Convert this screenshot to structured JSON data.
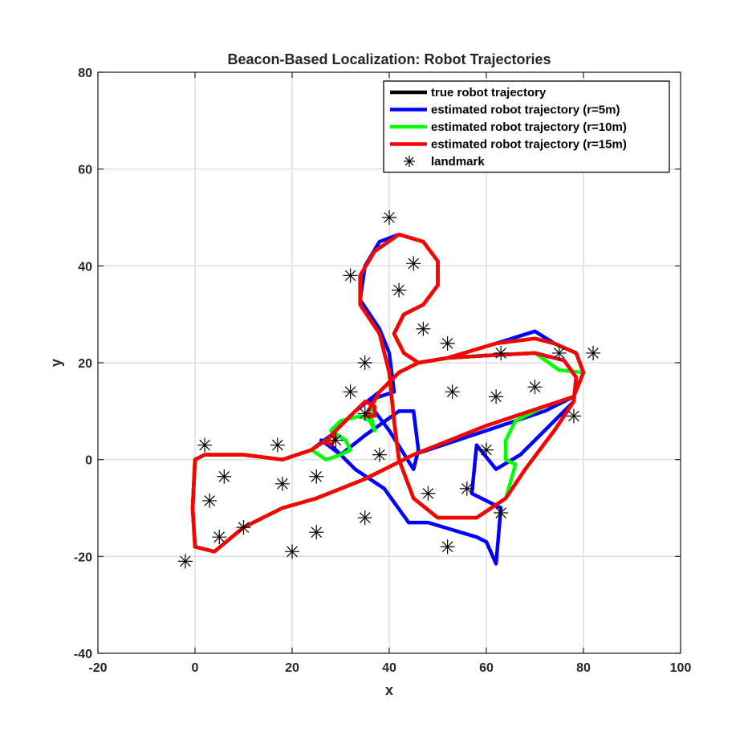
{
  "chart_data": {
    "type": "line",
    "title": "Beacon-Based Localization: Robot Trajectories",
    "xlabel": "x",
    "ylabel": "y",
    "xlim": [
      -20,
      100
    ],
    "ylim": [
      -40,
      80
    ],
    "xticks": [
      -20,
      0,
      20,
      40,
      60,
      80,
      100
    ],
    "yticks": [
      -40,
      -20,
      0,
      20,
      40,
      60,
      80
    ],
    "grid": true,
    "legend_position": "top-right",
    "series": [
      {
        "name": "true robot trajectory",
        "color": "#000000",
        "points": [
          [
            0,
            0
          ],
          [
            2,
            1
          ],
          [
            10,
            1
          ],
          [
            18,
            0
          ],
          [
            24,
            2
          ],
          [
            28,
            5
          ],
          [
            33,
            10
          ],
          [
            38,
            14
          ],
          [
            42,
            18
          ],
          [
            46,
            20
          ],
          [
            52,
            21
          ],
          [
            60,
            21.5
          ],
          [
            70,
            22
          ],
          [
            76,
            20.5
          ],
          [
            78.5,
            17
          ],
          [
            78,
            12
          ],
          [
            74,
            6
          ],
          [
            68,
            -2
          ],
          [
            64,
            -8
          ],
          [
            58,
            -12
          ],
          [
            50,
            -12
          ],
          [
            45,
            -8
          ],
          [
            42,
            0
          ],
          [
            41,
            8
          ],
          [
            40,
            18
          ],
          [
            38,
            26
          ],
          [
            34,
            32
          ],
          [
            34,
            38
          ],
          [
            37,
            43
          ],
          [
            42,
            46.5
          ],
          [
            47,
            45
          ],
          [
            50,
            41
          ],
          [
            50,
            36
          ],
          [
            47,
            32
          ],
          [
            43,
            30
          ],
          [
            41,
            26
          ],
          [
            43,
            22
          ],
          [
            46,
            20
          ],
          [
            52,
            21
          ],
          [
            62,
            24
          ],
          [
            70,
            25
          ],
          [
            74,
            24
          ],
          [
            78.5,
            22
          ],
          [
            80,
            18
          ],
          [
            78,
            13
          ],
          [
            72,
            11
          ],
          [
            60,
            7
          ],
          [
            45,
            1
          ],
          [
            35,
            -4
          ],
          [
            25,
            -8
          ],
          [
            18,
            -10
          ],
          [
            10,
            -14
          ],
          [
            4,
            -19
          ],
          [
            0,
            -18
          ],
          [
            -0.5,
            -10
          ],
          [
            0,
            0
          ]
        ]
      },
      {
        "name": "estimated robot trajectory (r=5m)",
        "color": "#0000ff",
        "points": [
          [
            0,
            0
          ],
          [
            2,
            1
          ],
          [
            10,
            1
          ],
          [
            18,
            0
          ],
          [
            24,
            2
          ],
          [
            28,
            5
          ],
          [
            33,
            10
          ],
          [
            38,
            14
          ],
          [
            42,
            18
          ],
          [
            46,
            20
          ],
          [
            52,
            21
          ],
          [
            60,
            21.5
          ],
          [
            70,
            22
          ],
          [
            76,
            20.5
          ],
          [
            78.5,
            17
          ],
          [
            78,
            12
          ],
          [
            72,
            6
          ],
          [
            67,
            1
          ],
          [
            62,
            -2
          ],
          [
            58,
            3
          ],
          [
            57,
            -7
          ],
          [
            62,
            -9.5
          ],
          [
            63,
            -10
          ],
          [
            62,
            -21.5
          ],
          [
            60,
            -17
          ],
          [
            58,
            -16
          ],
          [
            48,
            -13
          ],
          [
            44,
            -13
          ],
          [
            39,
            -6
          ],
          [
            33,
            -2
          ],
          [
            28,
            3
          ],
          [
            26,
            4
          ],
          [
            30,
            1
          ],
          [
            35,
            5
          ],
          [
            42,
            10
          ],
          [
            45,
            10
          ],
          [
            46,
            2
          ],
          [
            45,
            -2
          ],
          [
            40,
            6
          ],
          [
            37,
            10
          ],
          [
            36,
            12
          ],
          [
            38,
            13
          ],
          [
            41,
            14
          ],
          [
            40,
            22
          ],
          [
            38,
            27
          ],
          [
            34,
            33
          ],
          [
            35,
            40
          ],
          [
            38,
            45
          ],
          [
            42,
            46.5
          ],
          [
            47,
            45
          ],
          [
            50,
            41
          ],
          [
            50,
            36
          ],
          [
            47,
            32
          ],
          [
            43,
            30
          ],
          [
            41,
            26
          ],
          [
            43,
            22
          ],
          [
            46,
            20
          ],
          [
            52,
            21
          ],
          [
            62,
            24
          ],
          [
            70,
            26.5
          ],
          [
            74,
            24
          ],
          [
            78.5,
            22
          ],
          [
            80,
            18
          ],
          [
            78,
            13
          ],
          [
            72,
            10
          ],
          [
            60,
            6
          ],
          [
            45,
            1
          ],
          [
            35,
            -4
          ],
          [
            25,
            -8
          ],
          [
            18,
            -10
          ],
          [
            10,
            -14
          ],
          [
            4,
            -19
          ],
          [
            0,
            -18
          ],
          [
            -0.5,
            -10
          ],
          [
            0,
            0
          ]
        ]
      },
      {
        "name": "estimated robot trajectory (r=10m)",
        "color": "#00ff00",
        "points": [
          [
            0,
            0
          ],
          [
            2,
            1
          ],
          [
            10,
            1
          ],
          [
            18,
            0
          ],
          [
            24,
            2
          ],
          [
            27,
            0
          ],
          [
            30,
            1
          ],
          [
            32,
            2
          ],
          [
            31,
            4
          ],
          [
            28,
            6
          ],
          [
            30,
            8
          ],
          [
            34,
            9
          ],
          [
            36,
            8
          ],
          [
            37,
            6
          ],
          [
            36,
            10
          ],
          [
            38,
            14
          ],
          [
            42,
            18
          ],
          [
            46,
            20
          ],
          [
            52,
            21
          ],
          [
            60,
            21.5
          ],
          [
            70,
            22
          ],
          [
            75,
            18.5
          ],
          [
            80,
            18
          ],
          [
            78,
            13
          ],
          [
            72,
            11
          ],
          [
            66,
            8
          ],
          [
            64,
            4
          ],
          [
            64,
            0
          ],
          [
            66,
            -1
          ],
          [
            64,
            -8
          ],
          [
            58,
            -12
          ],
          [
            50,
            -12
          ],
          [
            45,
            -8
          ],
          [
            42,
            0
          ],
          [
            41,
            8
          ],
          [
            40,
            18
          ],
          [
            38,
            26
          ],
          [
            34,
            32
          ],
          [
            34,
            38
          ],
          [
            37,
            43
          ],
          [
            42,
            46.5
          ],
          [
            47,
            45
          ],
          [
            50,
            41
          ],
          [
            50,
            36
          ],
          [
            47,
            32
          ],
          [
            43,
            30
          ],
          [
            41,
            26
          ],
          [
            43,
            22
          ],
          [
            46,
            20
          ],
          [
            52,
            21
          ],
          [
            62,
            24
          ],
          [
            70,
            25
          ],
          [
            74,
            24
          ],
          [
            78.5,
            22
          ],
          [
            80,
            18
          ],
          [
            78,
            13
          ],
          [
            72,
            11
          ],
          [
            60,
            7
          ],
          [
            45,
            1
          ],
          [
            35,
            -4
          ],
          [
            25,
            -8
          ],
          [
            18,
            -10
          ],
          [
            10,
            -14
          ],
          [
            4,
            -19
          ],
          [
            0,
            -18
          ],
          [
            -0.5,
            -10
          ],
          [
            0,
            0
          ]
        ]
      },
      {
        "name": "estimated robot trajectory (r=15m)",
        "color": "#ff0000",
        "points": [
          [
            0,
            0
          ],
          [
            2,
            1
          ],
          [
            10,
            1
          ],
          [
            18,
            0
          ],
          [
            24,
            2
          ],
          [
            27,
            4
          ],
          [
            28,
            3
          ],
          [
            29,
            4.5
          ],
          [
            28,
            5
          ],
          [
            27,
            3.5
          ],
          [
            28,
            5
          ],
          [
            33,
            10
          ],
          [
            35,
            12
          ],
          [
            37,
            11
          ],
          [
            37,
            9
          ],
          [
            35,
            9
          ],
          [
            38,
            14
          ],
          [
            42,
            18
          ],
          [
            46,
            20
          ],
          [
            52,
            21
          ],
          [
            60,
            21.5
          ],
          [
            70,
            22
          ],
          [
            76,
            20.5
          ],
          [
            78.5,
            17
          ],
          [
            78,
            12
          ],
          [
            74,
            6
          ],
          [
            68,
            -2
          ],
          [
            64,
            -8
          ],
          [
            58,
            -12
          ],
          [
            50,
            -12
          ],
          [
            45,
            -8
          ],
          [
            42,
            0
          ],
          [
            41,
            8
          ],
          [
            40,
            18
          ],
          [
            38,
            26
          ],
          [
            34,
            32
          ],
          [
            34,
            38
          ],
          [
            37,
            43
          ],
          [
            42,
            46.5
          ],
          [
            47,
            45
          ],
          [
            50,
            41
          ],
          [
            50,
            36
          ],
          [
            47,
            32
          ],
          [
            43,
            30
          ],
          [
            41,
            26
          ],
          [
            43,
            22
          ],
          [
            46,
            20
          ],
          [
            52,
            21
          ],
          [
            62,
            24
          ],
          [
            70,
            25
          ],
          [
            74,
            24
          ],
          [
            78.5,
            22
          ],
          [
            80,
            18
          ],
          [
            78,
            13
          ],
          [
            72,
            11
          ],
          [
            60,
            7
          ],
          [
            45,
            1
          ],
          [
            35,
            -4
          ],
          [
            25,
            -8
          ],
          [
            18,
            -10
          ],
          [
            10,
            -14
          ],
          [
            4,
            -19
          ],
          [
            0,
            -18
          ],
          [
            -0.5,
            -10
          ],
          [
            0,
            0
          ]
        ]
      },
      {
        "name": "landmark",
        "color": "#000000",
        "marker": "asterisk",
        "points": [
          [
            2,
            3
          ],
          [
            17,
            3
          ],
          [
            3,
            -8.5
          ],
          [
            6,
            -3.5
          ],
          [
            18,
            -5
          ],
          [
            25,
            -3.5
          ],
          [
            10,
            -14
          ],
          [
            5,
            -16
          ],
          [
            25,
            -15
          ],
          [
            20,
            -19
          ],
          [
            -2,
            -21
          ],
          [
            29,
            4
          ],
          [
            32,
            14
          ],
          [
            35,
            20
          ],
          [
            35,
            9.5
          ],
          [
            32,
            38
          ],
          [
            40,
            50
          ],
          [
            42,
            35
          ],
          [
            45,
            40.5
          ],
          [
            47,
            27
          ],
          [
            38,
            1
          ],
          [
            35,
            -12
          ],
          [
            48,
            -7
          ],
          [
            52,
            24
          ],
          [
            53,
            14
          ],
          [
            56,
            -6
          ],
          [
            52,
            -18
          ],
          [
            60,
            2
          ],
          [
            62,
            13
          ],
          [
            63,
            22
          ],
          [
            63,
            -11
          ],
          [
            70,
            15
          ],
          [
            75,
            22
          ],
          [
            78,
            9
          ],
          [
            82,
            22
          ]
        ]
      }
    ]
  }
}
